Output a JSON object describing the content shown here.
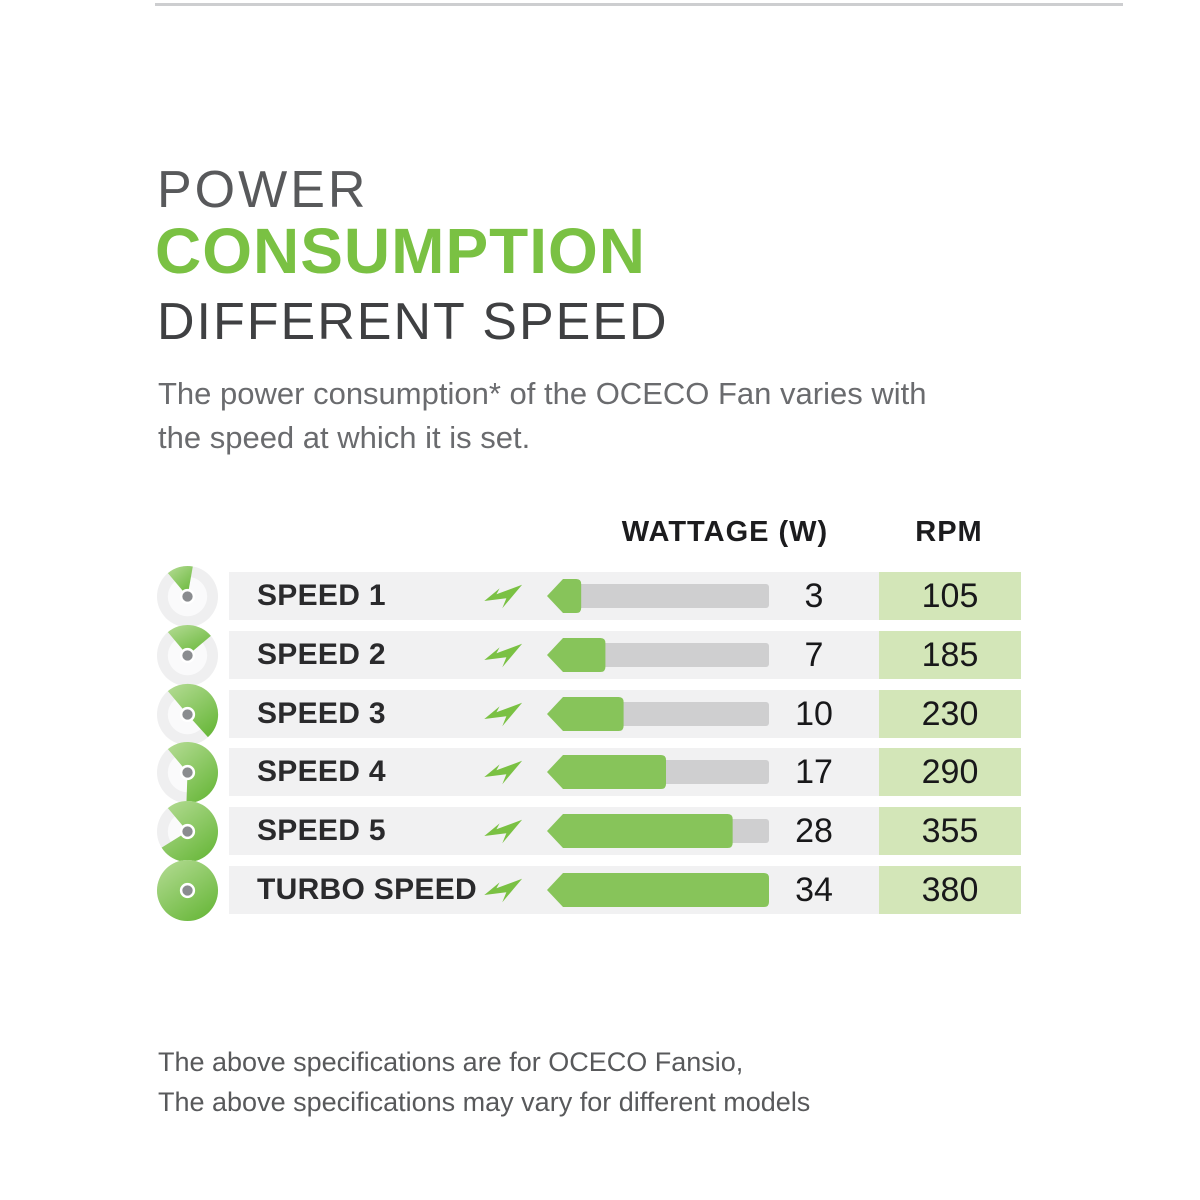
{
  "header": {
    "title_line1": "POWER",
    "title_line2": "CONSUMPTION",
    "title_line3": "DIFFERENT SPEED",
    "description_line1": "The power consumption* of the OCECO Fan varies with",
    "description_line2": "the speed at which it is set."
  },
  "table": {
    "col_wattage": "WATTAGE (W)",
    "col_rpm": "RPM",
    "max_wattage": 34,
    "rows": [
      {
        "label": "SPEED 1",
        "level": 1,
        "wattage": 3,
        "rpm": 105
      },
      {
        "label": "SPEED 2",
        "level": 2,
        "wattage": 7,
        "rpm": 185
      },
      {
        "label": "SPEED 3",
        "level": 3,
        "wattage": 10,
        "rpm": 230
      },
      {
        "label": "SPEED 4",
        "level": 4,
        "wattage": 17,
        "rpm": 290
      },
      {
        "label": "SPEED 5",
        "level": 5,
        "wattage": 28,
        "rpm": 355
      },
      {
        "label": "TURBO SPEED",
        "level": 6,
        "wattage": 34,
        "rpm": 380
      }
    ]
  },
  "footer": {
    "line1": "The above specifications are for OCECO Fansio,",
    "line2": "The above specifications may vary for different models"
  },
  "icons": {
    "gauge": "speed-gauge-icon",
    "bolt": "lightning-bolt-icon"
  },
  "colors": {
    "brand_green": "#7AC143",
    "bar_green": "#87C45A",
    "rpm_cell_green": "#D3E6B8",
    "row_bg": "#F1F1F2",
    "bar_track_gray": "#CFCFD0",
    "title_gray": "#58595B",
    "dark_heading": "#3F4042",
    "body_text": "#6A6B6E"
  },
  "chart_data": {
    "type": "bar",
    "orientation": "horizontal",
    "title": "POWER CONSUMPTION DIFFERENT SPEED",
    "categories": [
      "SPEED 1",
      "SPEED 2",
      "SPEED 3",
      "SPEED 4",
      "SPEED 5",
      "TURBO SPEED"
    ],
    "series": [
      {
        "name": "WATTAGE (W)",
        "values": [
          3,
          7,
          10,
          17,
          28,
          34
        ]
      },
      {
        "name": "RPM",
        "values": [
          105,
          185,
          230,
          290,
          355,
          380
        ]
      }
    ],
    "xlim": [
      0,
      34
    ],
    "grid": false,
    "legend_position": "none"
  }
}
